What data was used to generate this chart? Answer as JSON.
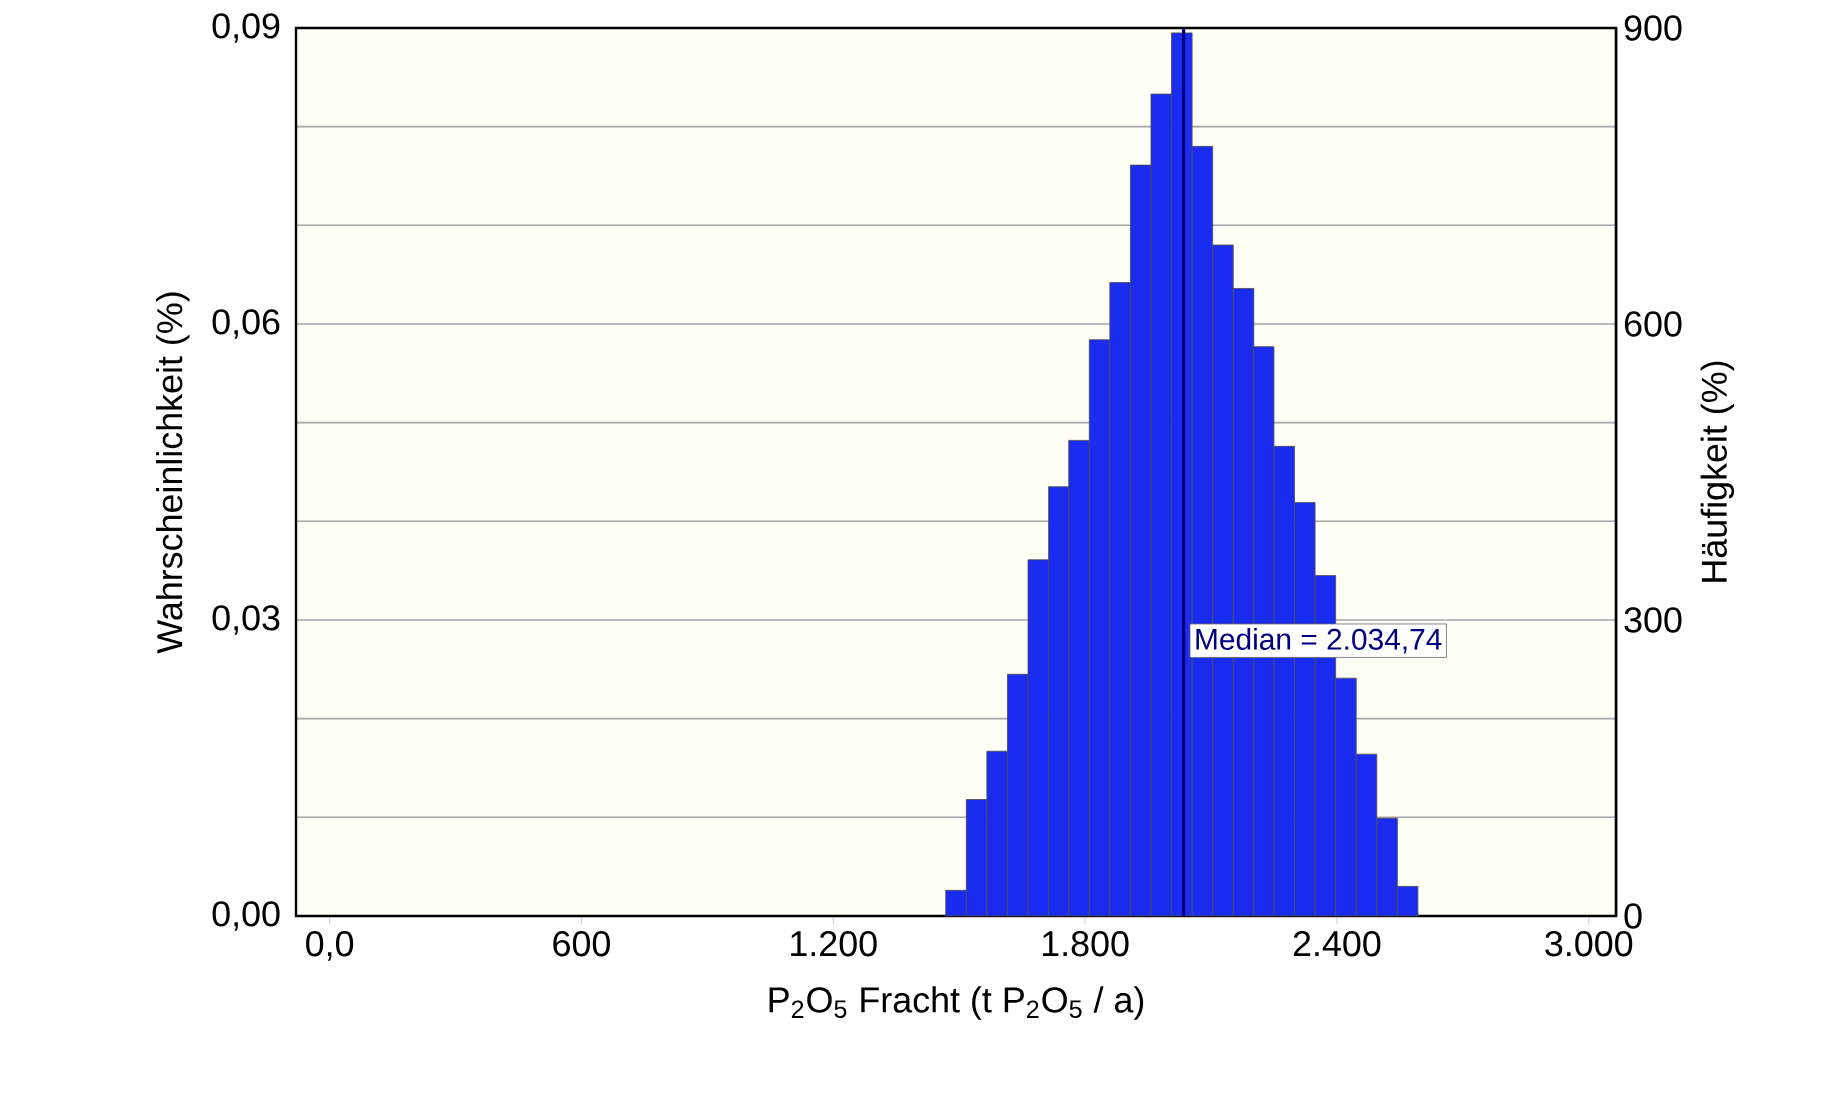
{
  "chart_data": {
    "type": "histogram",
    "xlabel": "P$_{2}$O$_{5}$ Fracht (t P$_{2}$O$_{5}$ / a)",
    "ylabel": "Wahrscheinlichkeit (%)",
    "y2label": "Häufigkeit (%)",
    "bins": [
      1468,
      1517,
      1566,
      1615,
      1664,
      1713,
      1761,
      1810,
      1859,
      1908,
      1957,
      2006,
      2055,
      2104,
      2153,
      2202,
      2250,
      2299,
      2348,
      2397,
      2446,
      2495,
      2544,
      2593
    ],
    "values": [
      0.0026,
      0.0118,
      0.0167,
      0.0245,
      0.0361,
      0.0435,
      0.0482,
      0.0584,
      0.0642,
      0.0761,
      0.0833,
      0.0895,
      0.078,
      0.068,
      0.0636,
      0.0577,
      0.0476,
      0.0419,
      0.0345,
      0.0241,
      0.0164,
      0.0099,
      0.003
    ],
    "color": "#1a2cf0",
    "xlim": [
      -80,
      3065
    ],
    "xticks": [
      {
        "value": 0,
        "label": "0,0"
      },
      {
        "value": 600,
        "label": "600"
      },
      {
        "value": 1200,
        "label": "1.200"
      },
      {
        "value": 1800,
        "label": "1.800"
      },
      {
        "value": 2400,
        "label": "2.400"
      },
      {
        "value": 3000,
        "label": "3.000"
      }
    ],
    "ylim": [
      0,
      0.09
    ],
    "yticks": [
      {
        "value": 0,
        "label": "0,00"
      },
      {
        "value": 0.01,
        "label": null
      },
      {
        "value": 0.02,
        "label": null
      },
      {
        "value": 0.03,
        "label": "0,03"
      },
      {
        "value": 0.04,
        "label": null
      },
      {
        "value": 0.05,
        "label": null
      },
      {
        "value": 0.06,
        "label": "0,06"
      },
      {
        "value": 0.07,
        "label": null
      },
      {
        "value": 0.08,
        "label": null
      },
      {
        "value": 0.09,
        "label": "0,09"
      }
    ],
    "y2lim": [
      0,
      900
    ],
    "y2ticks": [
      0,
      300,
      600,
      900
    ],
    "grid": "y",
    "ref_lines": [
      {
        "axis": "x",
        "value": 2034.74,
        "label": "Median = 2.034,74",
        "color": "#000080"
      }
    ]
  }
}
